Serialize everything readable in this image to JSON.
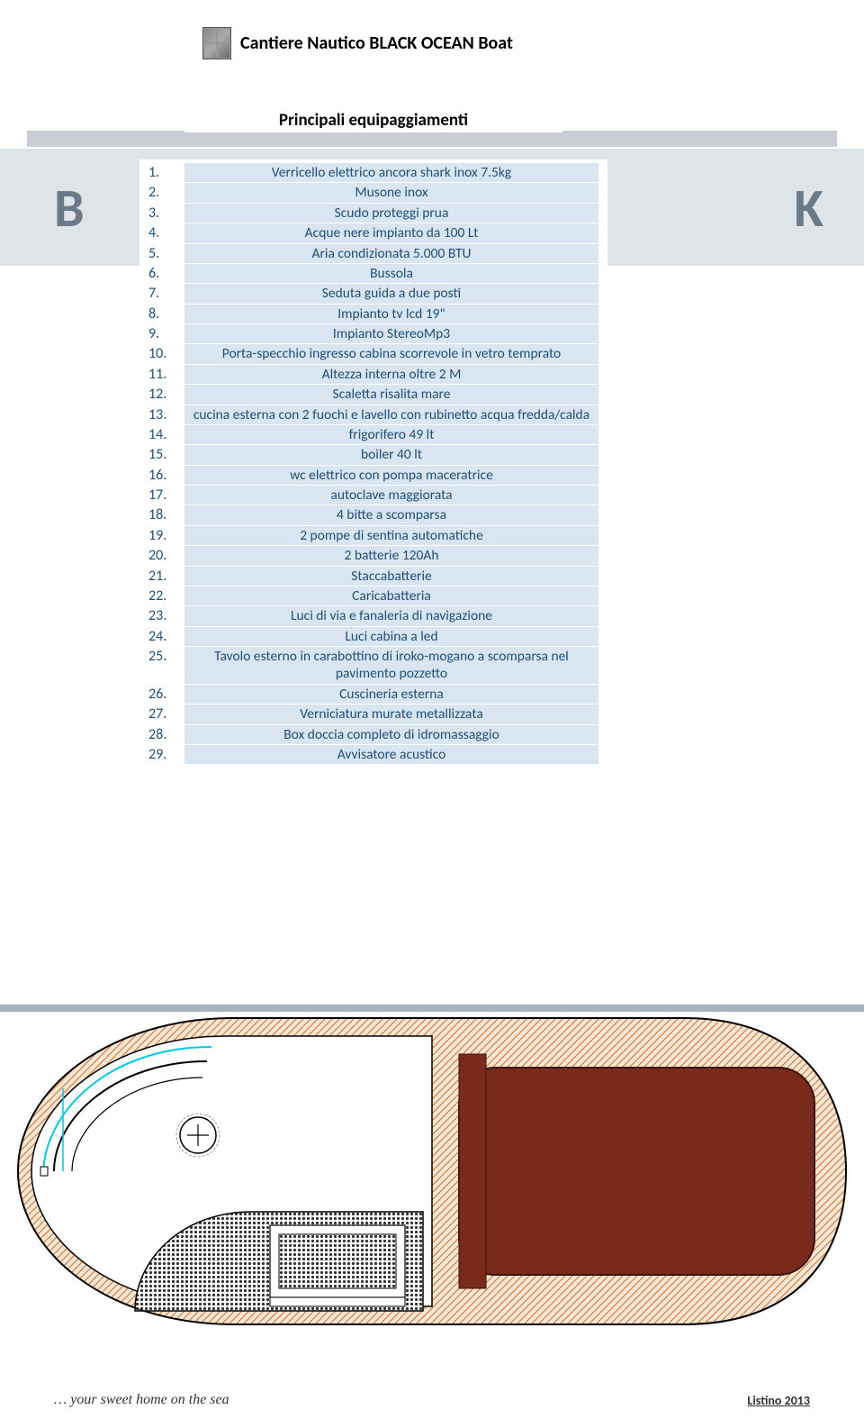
{
  "header": {
    "company": "Cantiere Nautico BLACK OCEAN Boat"
  },
  "section_title": "Principali equipaggiamenti",
  "equipment": [
    {
      "n": "1.",
      "text": "Verricello elettrico ancora shark inox 7.5kg"
    },
    {
      "n": "2.",
      "text": "Musone inox"
    },
    {
      "n": "3.",
      "text": "Scudo proteggi prua"
    },
    {
      "n": "4.",
      "text": "Acque nere impianto da 100 Lt"
    },
    {
      "n": "5.",
      "text": "Aria condizionata 5.000 BTU"
    },
    {
      "n": "6.",
      "text": "Bussola"
    },
    {
      "n": "7.",
      "text": "Seduta guida a due posti"
    },
    {
      "n": "8.",
      "text": "Impianto tv lcd 19\""
    },
    {
      "n": "9.",
      "text": "Impianto StereoMp3"
    },
    {
      "n": "10.",
      "text": "Porta-specchio ingresso cabina scorrevole in vetro temprato"
    },
    {
      "n": "11.",
      "text": "Altezza interna oltre 2 M"
    },
    {
      "n": "12.",
      "text": "Scaletta risalita mare"
    },
    {
      "n": "13.",
      "text": "cucina esterna con 2 fuochi e lavello con rubinetto acqua fredda/calda"
    },
    {
      "n": "14.",
      "text": "frigorifero 49 lt"
    },
    {
      "n": "15.",
      "text": "boiler 40 lt"
    },
    {
      "n": "16.",
      "text": "wc elettrico con pompa maceratrice"
    },
    {
      "n": "17.",
      "text": "autoclave maggiorata"
    },
    {
      "n": "18.",
      "text": "4 bitte a scomparsa"
    },
    {
      "n": "19.",
      "text": "2 pompe di sentina automatiche"
    },
    {
      "n": "20.",
      "text": "2 batterie 120Ah"
    },
    {
      "n": "21.",
      "text": "Staccabatterie"
    },
    {
      "n": "22.",
      "text": "Caricabatteria"
    },
    {
      "n": "23.",
      "text": "Luci di via e fanaleria di navigazione"
    },
    {
      "n": "24.",
      "text": "Luci cabina a led"
    },
    {
      "n": "25.",
      "text": "Tavolo esterno in carabottino di iroko-mogano a scomparsa nel pavimento pozzetto"
    },
    {
      "n": "26.",
      "text": "Cuscineria esterna"
    },
    {
      "n": "27.",
      "text": "Verniciatura murate metallizzata"
    },
    {
      "n": "28.",
      "text": "Box doccia completo di idromassaggio"
    },
    {
      "n": "29.",
      "text": "Avvisatore acustico"
    }
  ],
  "footer": {
    "tagline": "… your sweet home on the sea",
    "right": "Listino 2013"
  },
  "colors": {
    "row_bg": "#d9e6f2",
    "text_blue": "#1f4e79",
    "bg_grey": "#dfe4e8"
  },
  "diagram": {
    "type": "boat-deck-plan",
    "hull_stroke": "#000000",
    "cyan_accent": "#00c8e0",
    "hatch_fill": "#d97b3a",
    "panel_fill": "#7a2a1a",
    "grille_fill": "#333333"
  }
}
